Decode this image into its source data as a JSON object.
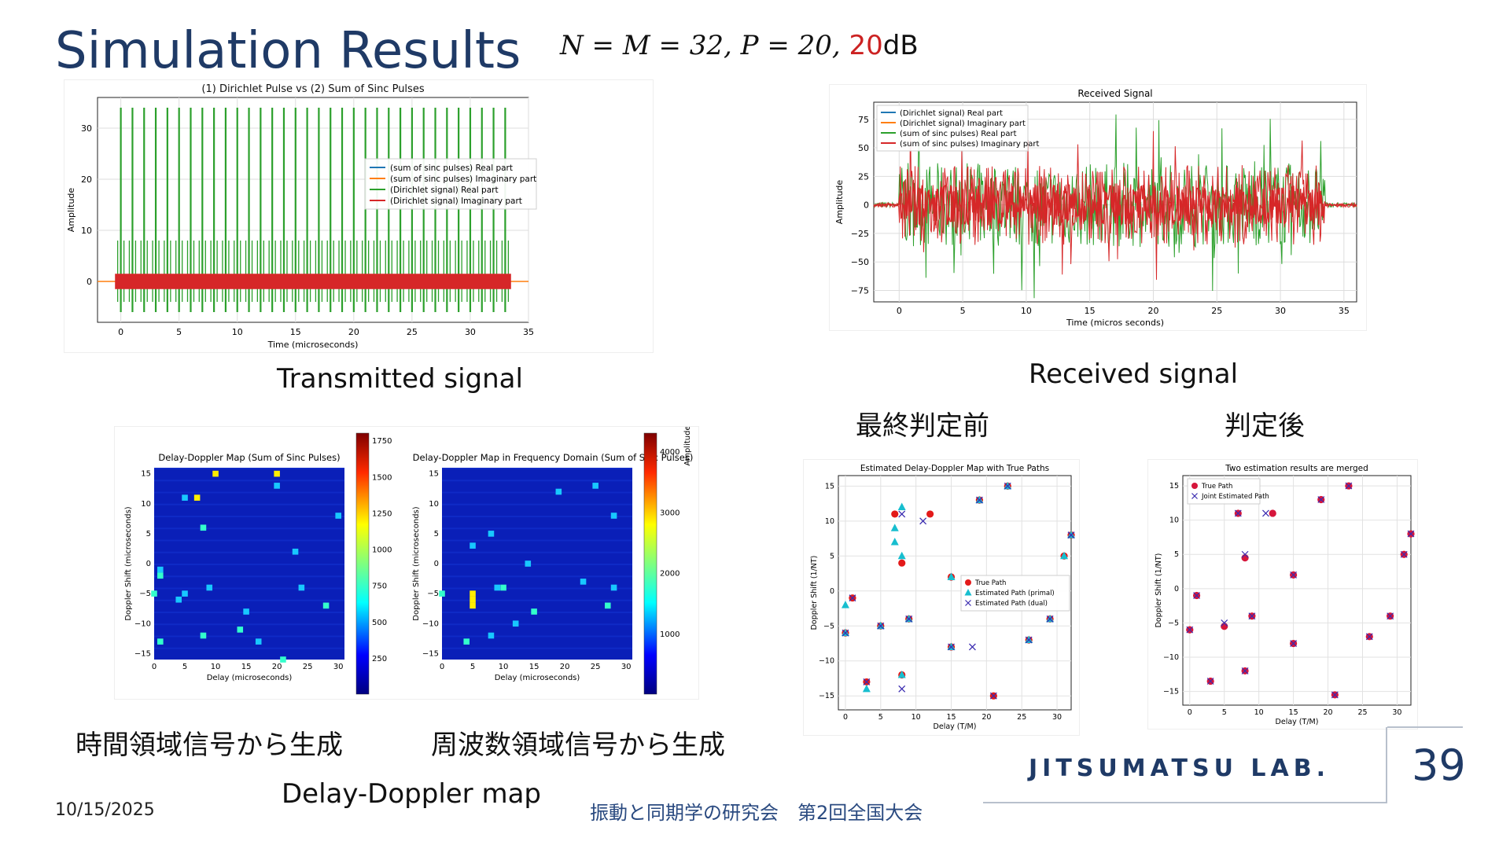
{
  "slide": {
    "title": "Simulation Results",
    "formula_main": "N = M = 32, P = 20, ",
    "formula_snr": "20",
    "formula_unit": "dB",
    "caption_transmitted": "Transmitted signal",
    "caption_received": "Received signal",
    "caption_before": "最終判定前",
    "caption_after": "判定後",
    "caption_time_domain": "時間領域信号から生成",
    "caption_freq_domain": "周波数領域信号から生成",
    "caption_dd_map": "Delay-Doppler map",
    "date": "10/15/2025",
    "conference": "振動と同期学の研究会　第2回全国大会",
    "lab": "JITSUMATSU LAB.",
    "page_number": "39"
  },
  "colors": {
    "title": "#1f3a66",
    "blue": "#1f77b4",
    "orange": "#ff7f0e",
    "green": "#2ca02c",
    "red": "#d62728"
  },
  "tx": {
    "title": "(1) Dirichlet Pulse vs (2) Sum of Sinc Pulses",
    "xlabel": "Time (microseconds)",
    "ylabel": "Amplitude",
    "xticks": [
      "0",
      "5",
      "10",
      "15",
      "20",
      "25",
      "30",
      "35"
    ],
    "yticks": [
      "0",
      "10",
      "20",
      "30"
    ],
    "legend": [
      "(sum of sinc pulses) Real part",
      "(sum of sinc pulses) Imaginary part",
      "(Dirichlet signal) Real part",
      "(Dirichlet signal) Imaginary part"
    ]
  },
  "rx": {
    "title": "Received Signal",
    "xlabel": "Time (micros seconds)",
    "ylabel": "Amplitude",
    "xticks": [
      "0",
      "5",
      "10",
      "15",
      "20",
      "25",
      "30",
      "35"
    ],
    "yticks": [
      "75",
      "50",
      "25",
      "0",
      "−25",
      "−50",
      "−75"
    ],
    "legend": [
      "(Dirichlet signal) Real part",
      "(Dirichlet signal) Imaginary part",
      "(sum of sinc pulses) Real part",
      "(sum of sinc pulses) Imaginary part"
    ]
  },
  "dd1": {
    "title": "Delay-Doppler Map (Sum of Sinc Pulses)",
    "xlabel": "Delay (microseconds)",
    "ylabel": "Doppler Shift (microseconds)",
    "xticks": [
      "0",
      "5",
      "10",
      "15",
      "20",
      "25",
      "30"
    ],
    "yticks": [
      "15",
      "10",
      "5",
      "0",
      "−5",
      "−10",
      "−15"
    ],
    "cbar": [
      "1750",
      "1500",
      "1250",
      "1000",
      "750",
      "500",
      "250"
    ]
  },
  "dd2": {
    "title": "Delay-Doppler Map in Frequency Domain (Sum of Sinc Pulses)",
    "xlabel": "Delay (microseconds)",
    "ylabel": "Doppler Shift (microseconds)",
    "xticks": [
      "0",
      "5",
      "10",
      "15",
      "20",
      "25",
      "30"
    ],
    "yticks": [
      "15",
      "10",
      "5",
      "0",
      "−5",
      "−10",
      "−15"
    ],
    "cbar": [
      "4000",
      "3000",
      "2000",
      "1000"
    ],
    "cbar_label": "Amplitude"
  },
  "est1": {
    "title": "Estimated Delay-Doppler Map with True Paths",
    "xlabel": "Delay (T/M)",
    "ylabel": "Doppler Shift (1/NT)",
    "xticks": [
      "0",
      "5",
      "10",
      "15",
      "20",
      "25",
      "30"
    ],
    "yticks": [
      "15",
      "10",
      "5",
      "0",
      "−5",
      "−10",
      "−15"
    ],
    "legend": [
      "True Path",
      "Estimated Path (primal)",
      "Estimated Path (dual)"
    ]
  },
  "est2": {
    "title": "Two estimation results are merged",
    "xlabel": "Delay (T/M)",
    "ylabel": "Doppler Shift (1/NT)",
    "xticks": [
      "0",
      "5",
      "10",
      "15",
      "20",
      "25",
      "30"
    ],
    "yticks": [
      "15",
      "10",
      "5",
      "0",
      "−5",
      "−10",
      "−15"
    ],
    "legend": [
      "True Path",
      "Joint Estimated Path"
    ]
  },
  "chart_data": [
    {
      "type": "line",
      "title": "(1) Dirichlet Pulse vs (2) Sum of Sinc Pulses",
      "xlabel": "Time (microseconds)",
      "ylabel": "Amplitude",
      "xlim": [
        -2,
        35
      ],
      "ylim": [
        -8,
        36
      ],
      "series": [
        {
          "name": "(Dirichlet signal) Real part",
          "pulse_times": [
            0,
            1,
            2,
            3,
            4,
            5,
            6,
            7,
            8,
            9,
            10,
            11,
            12,
            13,
            14,
            15,
            16,
            17,
            18,
            19,
            20,
            21,
            22,
            23,
            24,
            25,
            26,
            27,
            28,
            29,
            30,
            31,
            32,
            33
          ],
          "peak": 34,
          "trough": -6
        },
        {
          "name": "(Dirichlet signal) Imaginary part",
          "band": [
            -1.5,
            1.5
          ]
        }
      ]
    },
    {
      "type": "line",
      "title": "Received Signal",
      "xlabel": "Time (micros seconds)",
      "ylabel": "Amplitude",
      "xlim": [
        -2,
        36
      ],
      "ylim": [
        -85,
        90
      ],
      "note": "noisy received waveform, active from about -2 to 36 microseconds, envelope roughly ±80"
    },
    {
      "type": "heatmap",
      "title": "Delay-Doppler Map (Sum of Sinc Pulses)",
      "xlim": [
        0,
        31
      ],
      "ylim": [
        -16,
        16
      ],
      "peaks": [
        [
          10,
          15
        ],
        [
          20,
          15
        ],
        [
          7,
          11
        ],
        [
          20,
          13
        ],
        [
          30,
          8
        ],
        [
          8,
          6
        ],
        [
          1,
          -1
        ],
        [
          1,
          -2
        ],
        [
          0,
          -5
        ],
        [
          5,
          -5
        ],
        [
          9,
          -4
        ],
        [
          4,
          -6
        ],
        [
          15,
          -8
        ],
        [
          28,
          -7
        ],
        [
          8,
          -12
        ],
        [
          1,
          -13
        ],
        [
          17,
          -13
        ],
        [
          21,
          -16
        ],
        [
          24,
          -4
        ],
        [
          14,
          -11
        ],
        [
          5,
          11
        ],
        [
          23,
          2
        ]
      ],
      "colorbar_range": [
        0,
        1800
      ]
    },
    {
      "type": "heatmap",
      "title": "Delay-Doppler Map in Frequency Domain (Sum of Sinc Pulses)",
      "xlim": [
        0,
        31
      ],
      "ylim": [
        -16,
        16
      ],
      "peaks": [
        [
          5,
          -6
        ],
        [
          5,
          -5
        ],
        [
          5,
          -7
        ],
        [
          19,
          12
        ],
        [
          25,
          13
        ],
        [
          8,
          5
        ],
        [
          14,
          0
        ],
        [
          10,
          -4
        ],
        [
          9,
          -4
        ],
        [
          28,
          8
        ],
        [
          27,
          -7
        ],
        [
          5,
          3
        ],
        [
          8,
          -12
        ],
        [
          15,
          -8
        ],
        [
          0,
          -5
        ],
        [
          23,
          -3
        ],
        [
          4,
          -13
        ],
        [
          12,
          -10
        ],
        [
          28,
          -4
        ]
      ],
      "colorbar_range": [
        0,
        4300
      ]
    },
    {
      "type": "scatter",
      "title": "Estimated Delay-Doppler Map with True Paths",
      "xlabel": "Delay (T/M)",
      "ylabel": "Doppler Shift (1/NT)",
      "xlim": [
        -1,
        32
      ],
      "ylim": [
        -17,
        16.5
      ],
      "series": [
        {
          "name": "True Path",
          "points": [
            [
              0,
              -6
            ],
            [
              1,
              -1
            ],
            [
              3,
              -13
            ],
            [
              5,
              -5
            ],
            [
              7,
              11
            ],
            [
              8,
              4
            ],
            [
              8,
              -12
            ],
            [
              9,
              -4
            ],
            [
              12,
              11
            ],
            [
              15,
              2
            ],
            [
              15,
              -8
            ],
            [
              19,
              13
            ],
            [
              21,
              -15
            ],
            [
              23,
              15
            ],
            [
              26,
              -7
            ],
            [
              29,
              -4
            ],
            [
              31,
              5
            ],
            [
              32,
              8
            ]
          ]
        },
        {
          "name": "Estimated Path (primal)",
          "points": [
            [
              0,
              -6
            ],
            [
              0,
              -2
            ],
            [
              3,
              -14
            ],
            [
              5,
              -5
            ],
            [
              7,
              9
            ],
            [
              7,
              7
            ],
            [
              8,
              12
            ],
            [
              8,
              5
            ],
            [
              8,
              -12
            ],
            [
              9,
              -4
            ],
            [
              15,
              2
            ],
            [
              15,
              -8
            ],
            [
              19,
              13
            ],
            [
              23,
              15
            ],
            [
              26,
              -7
            ],
            [
              29,
              -4
            ],
            [
              31,
              5
            ],
            [
              32,
              8
            ]
          ]
        },
        {
          "name": "Estimated Path (dual)",
          "points": [
            [
              0,
              -6
            ],
            [
              1,
              -1
            ],
            [
              3,
              -13
            ],
            [
              5,
              -5
            ],
            [
              8,
              11
            ],
            [
              8,
              -14
            ],
            [
              9,
              -4
            ],
            [
              11,
              10
            ],
            [
              15,
              -8
            ],
            [
              18,
              -8
            ],
            [
              19,
              13
            ],
            [
              21,
              -15
            ],
            [
              23,
              15
            ],
            [
              26,
              -7
            ],
            [
              29,
              -4
            ],
            [
              32,
              8
            ]
          ]
        }
      ]
    },
    {
      "type": "scatter",
      "title": "Two estimation results are merged",
      "xlabel": "Delay (T/M)",
      "ylabel": "Doppler Shift (1/NT)",
      "xlim": [
        -1,
        32
      ],
      "ylim": [
        -17,
        16.5
      ],
      "series": [
        {
          "name": "True Path",
          "points": [
            [
              0,
              -6
            ],
            [
              1,
              -1
            ],
            [
              3,
              -13.5
            ],
            [
              5,
              -5.5
            ],
            [
              7,
              11
            ],
            [
              8,
              4.5
            ],
            [
              8,
              -12
            ],
            [
              9,
              -4
            ],
            [
              12,
              11
            ],
            [
              15,
              2
            ],
            [
              15,
              -8
            ],
            [
              19,
              13
            ],
            [
              21,
              -15.5
            ],
            [
              23,
              15
            ],
            [
              26,
              -7
            ],
            [
              29,
              -4
            ],
            [
              31,
              5
            ],
            [
              32,
              8
            ]
          ]
        },
        {
          "name": "Joint Estimated Path",
          "points": [
            [
              0,
              -6
            ],
            [
              1,
              -1
            ],
            [
              3,
              -13.5
            ],
            [
              5,
              -5
            ],
            [
              7,
              11
            ],
            [
              8,
              5
            ],
            [
              8,
              -12
            ],
            [
              9,
              -4
            ],
            [
              11,
              11
            ],
            [
              15,
              2
            ],
            [
              15,
              -8
            ],
            [
              19,
              13
            ],
            [
              21,
              -15.5
            ],
            [
              23,
              15
            ],
            [
              26,
              -7
            ],
            [
              29,
              -4
            ],
            [
              31,
              5
            ],
            [
              32,
              8
            ]
          ]
        }
      ]
    }
  ]
}
